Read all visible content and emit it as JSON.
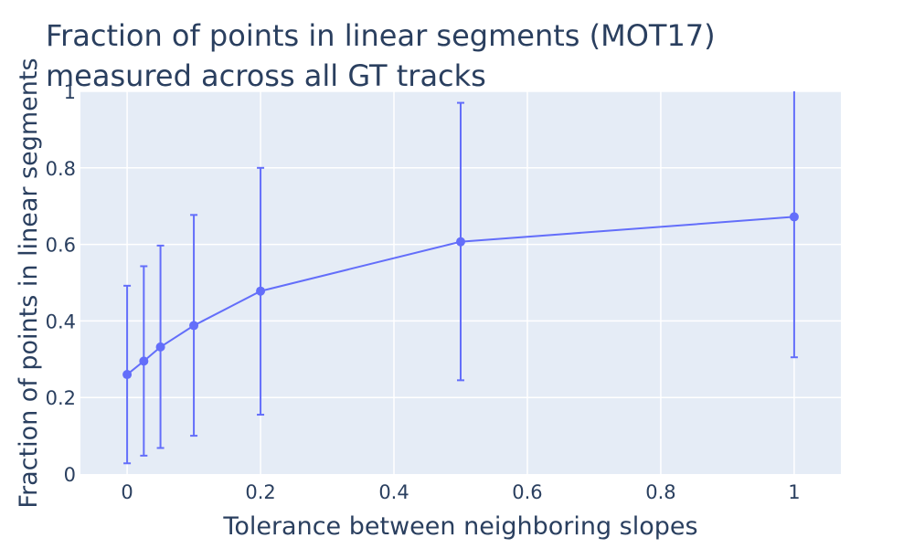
{
  "chart_data": {
    "type": "scatter",
    "mode": "lines+markers",
    "title_lines": [
      "Fraction of points in linear segments (MOT17)",
      "measured across all GT tracks"
    ],
    "xlabel": "Tolerance between neighboring slopes",
    "ylabel": "Fraction of points in linear segments",
    "xlim": [
      -0.07,
      1.07
    ],
    "ylim": [
      0,
      1
    ],
    "xticks": [
      0,
      0.2,
      0.4,
      0.6,
      0.8,
      1
    ],
    "xtick_labels": [
      "0",
      "0.2",
      "0.4",
      "0.6",
      "0.8",
      "1"
    ],
    "yticks": [
      0,
      0.2,
      0.4,
      0.6,
      0.8,
      1
    ],
    "ytick_labels": [
      "0",
      "0.2",
      "0.4",
      "0.6",
      "0.8",
      "1"
    ],
    "grid": true,
    "colors": {
      "line": "#636efa",
      "plot_bg": "#e5ecf6",
      "grid": "#ffffff",
      "text": "#2a3f5f"
    },
    "series": [
      {
        "x": [
          0,
          0.025,
          0.05,
          0.1,
          0.2,
          0.5,
          1
        ],
        "y": [
          0.26,
          0.295,
          0.332,
          0.388,
          0.478,
          0.607,
          0.672
        ],
        "error_lower": [
          0.028,
          0.048,
          0.068,
          0.1,
          0.155,
          0.245,
          0.305
        ],
        "error_upper": [
          0.492,
          0.543,
          0.597,
          0.677,
          0.8,
          0.97,
          1.04
        ]
      }
    ]
  }
}
